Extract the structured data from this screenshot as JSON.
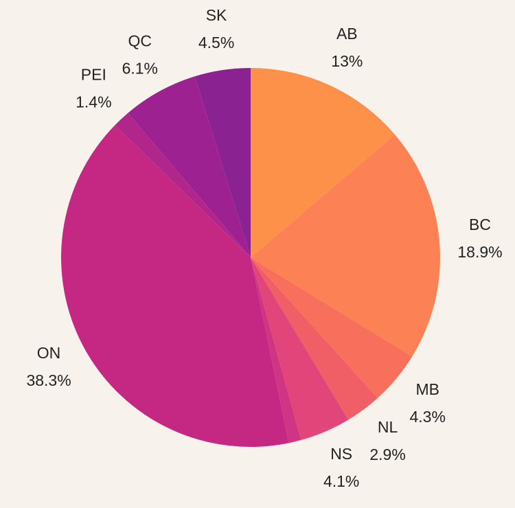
{
  "chart_data": {
    "type": "pie",
    "categories": [
      "AB",
      "BC",
      "MB",
      "NL",
      "NS",
      null,
      "ON",
      "PEI",
      "QC",
      "SK"
    ],
    "values": [
      13,
      18.9,
      4.3,
      2.9,
      4.1,
      1,
      38.3,
      1.4,
      6.1,
      4.5
    ],
    "value_labels": [
      "13%",
      "18.9%",
      "4.3%",
      "2.9%",
      "4.1%",
      null,
      "38.3%",
      "1.4%",
      "6.1%",
      "4.5%"
    ],
    "colors": [
      "#fd914a",
      "#fc8256",
      "#f8705c",
      "#f05f66",
      "#e2457a",
      "#d03584",
      "#c42883",
      "#b1268b",
      "#9e2192",
      "#8a2292"
    ]
  }
}
